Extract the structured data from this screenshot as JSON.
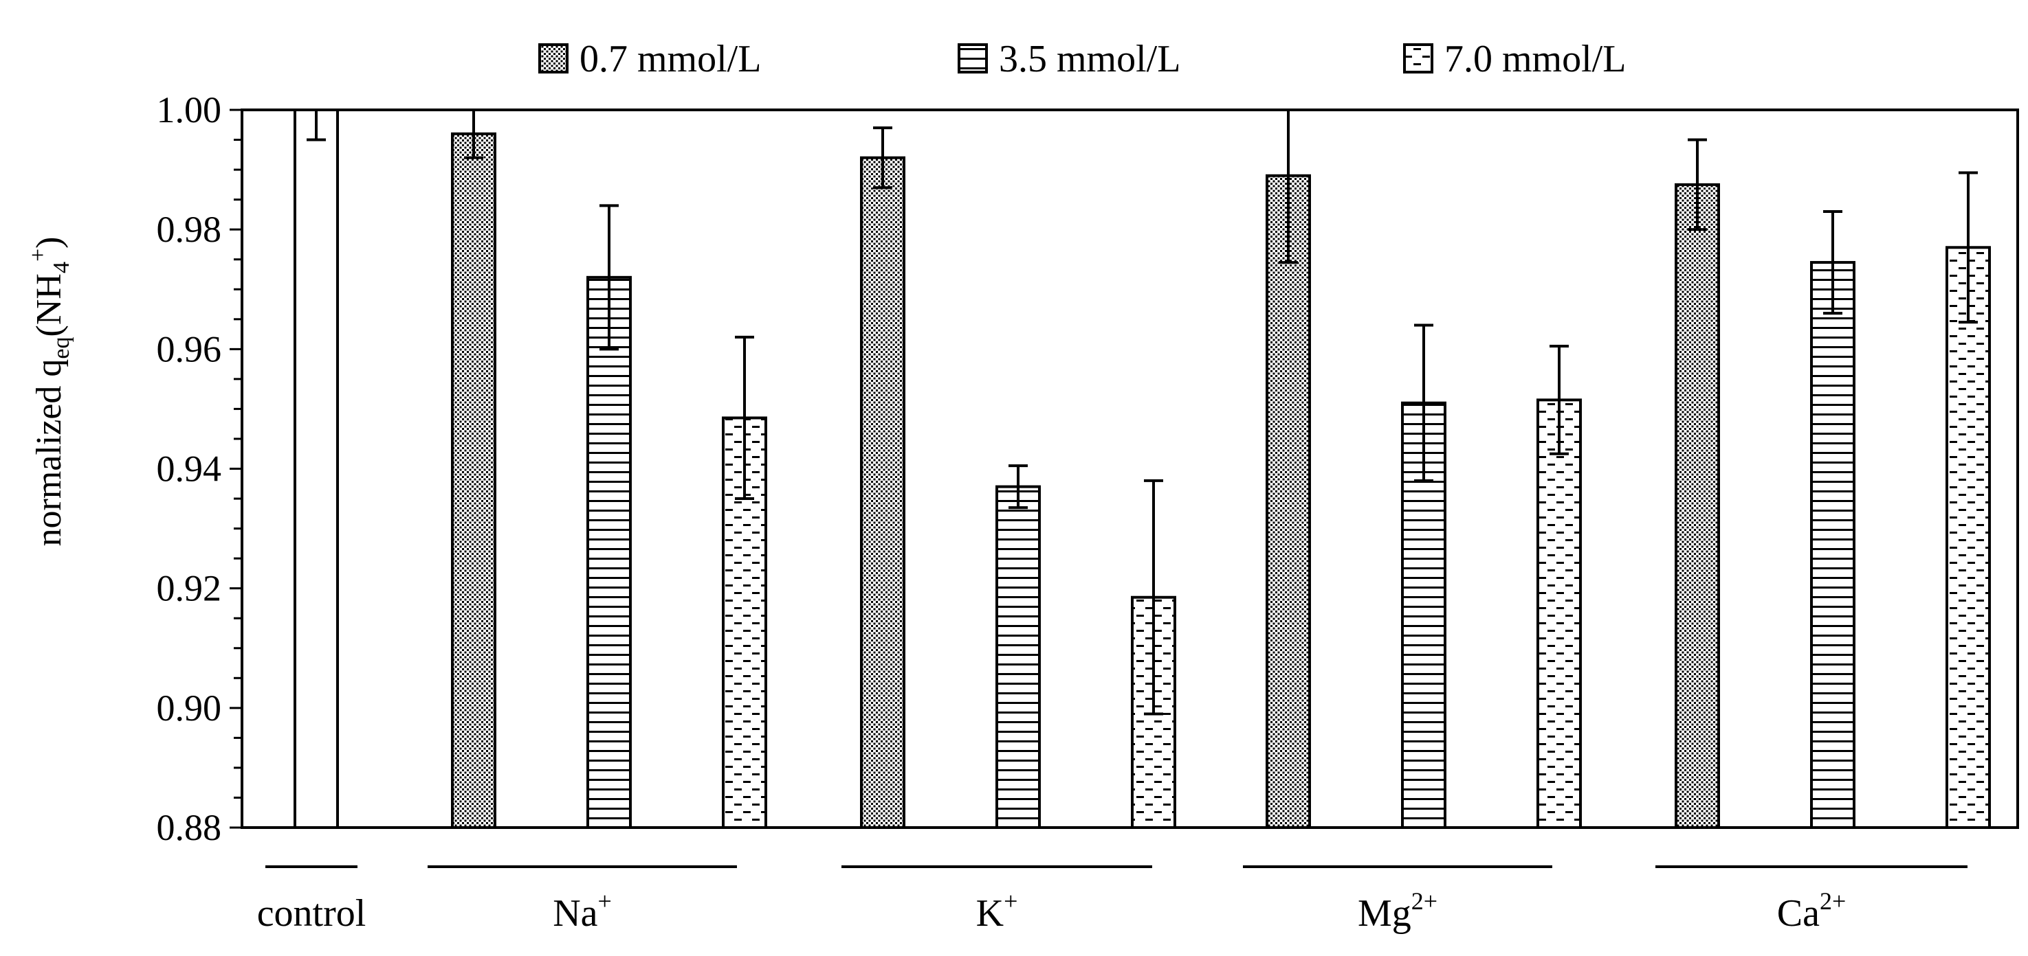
{
  "chart_data": {
    "type": "bar",
    "title": "",
    "xlabel": "",
    "ylabel": "normalized q",
    "ylabel_sub": "eq",
    "ylabel_species": "(NH",
    "ylabel_species_sub": "4",
    "ylabel_species_sup": "+",
    "ylabel_close": ")",
    "ylim": [
      0.88,
      1.0
    ],
    "yticks": [
      0.88,
      0.9,
      0.92,
      0.94,
      0.96,
      0.98,
      1.0
    ],
    "ytick_labels": [
      "0.88",
      "0.90",
      "0.92",
      "0.94",
      "0.96",
      "0.98",
      "1.00"
    ],
    "ytick_minor_step": 0.005,
    "legend_position": "top-center",
    "control": {
      "label": "control",
      "value": 1.0,
      "error": 0.005
    },
    "groups": [
      {
        "base": "Na",
        "charge": "+"
      },
      {
        "base": "K",
        "charge": "+"
      },
      {
        "base": "Mg",
        "charge": "2+"
      },
      {
        "base": "Ca",
        "charge": "2+"
      }
    ],
    "series": [
      {
        "name": "0.7 mmol/L",
        "pattern": "dots",
        "values": [
          0.996,
          0.992,
          0.989,
          0.9875
        ],
        "errors": [
          0.004,
          0.005,
          0.0145,
          0.0075
        ]
      },
      {
        "name": "3.5 mmol/L",
        "pattern": "hlines",
        "values": [
          0.972,
          0.937,
          0.951,
          0.9745
        ],
        "errors": [
          0.012,
          0.0035,
          0.013,
          0.0085
        ]
      },
      {
        "name": "7.0 mmol/L",
        "pattern": "dashes",
        "values": [
          0.9485,
          0.9185,
          0.9515,
          0.977
        ],
        "errors": [
          0.0135,
          0.0195,
          0.009,
          0.0125
        ]
      }
    ]
  }
}
